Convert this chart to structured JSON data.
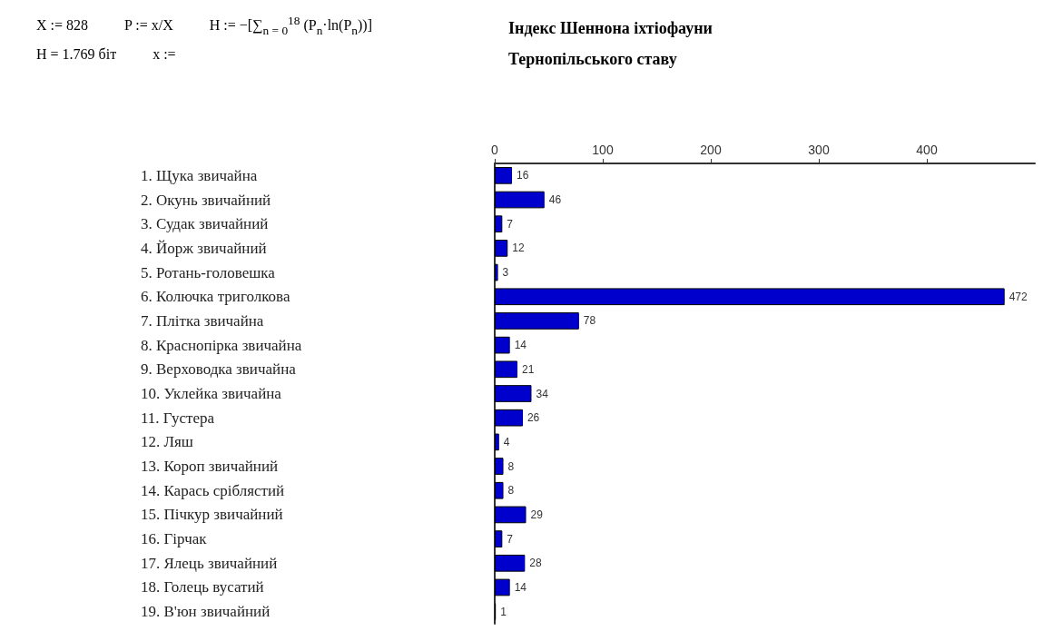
{
  "chart_data": {
    "type": "bar",
    "orientation": "horizontal",
    "title": "Індекс Шеннона іхтіофауни Тернопільського ставу",
    "annotations": [
      "X := 828",
      "P := x/X",
      "H := −[∑$_{n = 0}$$^{18}$ (P$_{n}$·ln(P$_{n}$))]",
      "H = 1.769 біт",
      "x :="
    ],
    "categories": [
      "1. Щука звичайна",
      "2. Окунь звичайний",
      "3. Судак звичайний",
      "4. Йорж звичайний",
      "5. Ротань-головешка",
      "6. Колючка триголкова",
      "7. Плітка звичайна",
      "8. Краснопірка звичайна",
      "9. Верховодка звичайна",
      "10. Уклейка звичайна",
      "11. Густера",
      "12. Ляш",
      "13. Короп звичайний",
      "14. Карась сріблястий",
      "15. Пічкур звичайний",
      "16. Гірчак",
      "17. Ялець звичайний",
      "18. Голець вусатий",
      "19. В'юн звичайний"
    ],
    "values": [
      16,
      46,
      7,
      12,
      3,
      472,
      78,
      14,
      21,
      34,
      26,
      4,
      8,
      8,
      29,
      7,
      28,
      14,
      1
    ],
    "color": "#0000cc",
    "data_labels": true,
    "x2lim": [
      0,
      500
    ],
    "x2ticks": [
      0,
      100,
      200,
      300,
      400
    ],
    "grid": false
  }
}
